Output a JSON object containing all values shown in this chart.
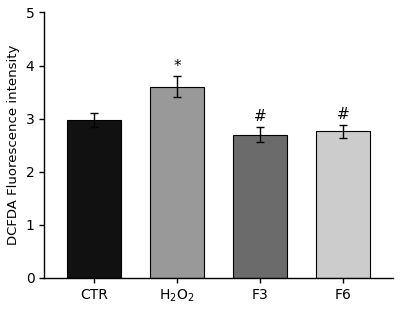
{
  "categories": [
    "CTR",
    "H$_2$O$_2$",
    "F3",
    "F6"
  ],
  "values": [
    2.98,
    3.6,
    2.7,
    2.76
  ],
  "errors": [
    0.13,
    0.2,
    0.14,
    0.12
  ],
  "bar_colors": [
    "#111111",
    "#999999",
    "#6b6b6b",
    "#cccccc"
  ],
  "significance": [
    "",
    "*",
    "#",
    "#"
  ],
  "ylabel": "DCFDA Fluorescence intensity",
  "ylim": [
    0,
    5
  ],
  "yticks": [
    0,
    1,
    2,
    3,
    4,
    5
  ],
  "background_color": "#ffffff",
  "bar_width": 0.65,
  "sig_fontsize": 11,
  "axis_fontsize": 9.5,
  "tick_fontsize": 10
}
